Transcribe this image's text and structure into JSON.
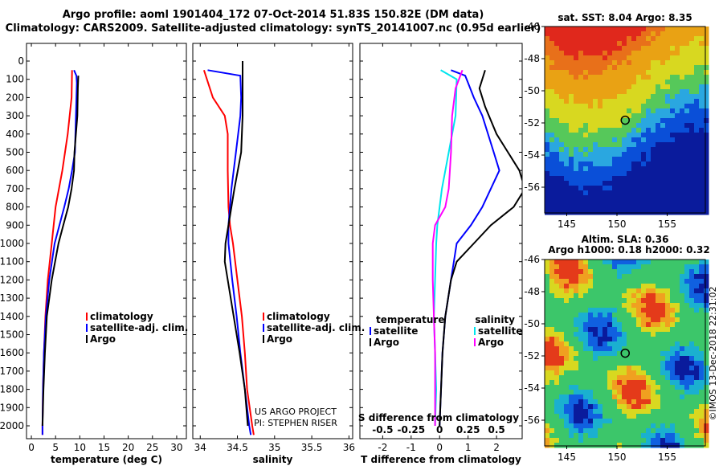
{
  "header": {
    "line1": "Argo profile: aoml 1901404_172 07-Oct-2014 51.83S 150.82E (DM data)",
    "line2": "Climatology: CARS2009. Satellite-adjusted climatology: synTS_20141007.nc (0.95d earlier)"
  },
  "depth_ticks": [
    "0",
    "100",
    "200",
    "300",
    "400",
    "500",
    "600",
    "700",
    "800",
    "900",
    "1000",
    "1100",
    "1200",
    "1300",
    "1400",
    "1500",
    "1600",
    "1700",
    "1800",
    "1900",
    "2000"
  ],
  "colors": {
    "climatology": "#ff0000",
    "satellite": "#0000ff",
    "argo": "#000000",
    "salinity_sat": "#00e5ee",
    "salinity_argo": "#ff00ff"
  },
  "chart_data": [
    {
      "type": "line",
      "xlabel": "temperature (deg C)",
      "xticks": [
        "0",
        "5",
        "10",
        "15",
        "20",
        "25",
        "30"
      ],
      "xlim": [
        -1,
        32
      ],
      "ylim": [
        2070,
        0
      ],
      "legend": [
        "climatology",
        "satellite-adj. clim.",
        "Argo"
      ],
      "series": [
        {
          "name": "climatology",
          "depth": [
            50,
            200,
            400,
            600,
            800,
            1000,
            1200,
            1400,
            1600,
            1800,
            2000,
            2050
          ],
          "values": [
            8.4,
            8.3,
            7.5,
            6.4,
            5.0,
            4.2,
            3.4,
            2.9,
            2.6,
            2.4,
            2.3,
            2.3
          ]
        },
        {
          "name": "satellite-adj. clim.",
          "depth": [
            50,
            80,
            120,
            300,
            500,
            600,
            700,
            800,
            900,
            1000,
            1200,
            1400,
            1600,
            1800,
            2000,
            2050
          ],
          "values": [
            8.8,
            9.3,
            9.4,
            9.2,
            9.0,
            8.4,
            7.7,
            6.8,
            5.8,
            4.8,
            3.7,
            3.0,
            2.6,
            2.4,
            2.3,
            2.3
          ]
        },
        {
          "name": "Argo",
          "depth": [
            80,
            150,
            300,
            500,
            600,
            700,
            800,
            900,
            1000,
            1200,
            1400,
            1600,
            1800,
            2000
          ],
          "values": [
            9.7,
            9.6,
            9.5,
            8.9,
            8.8,
            8.3,
            7.6,
            6.6,
            5.6,
            4.2,
            3.2,
            2.8,
            2.5,
            2.3
          ]
        }
      ]
    },
    {
      "type": "line",
      "xlabel": "salinity",
      "xticks": [
        "34",
        "34.5",
        "35",
        "35.5",
        "36"
      ],
      "xlim": [
        33.9,
        36.05
      ],
      "ylim": [
        2070,
        0
      ],
      "legend": [
        "climatology",
        "satellite-adj. clim.",
        "Argo"
      ],
      "annotations": [
        "US ARGO PROJECT",
        "PI: STEPHEN RISER"
      ],
      "series": [
        {
          "name": "climatology",
          "depth": [
            50,
            200,
            300,
            400,
            600,
            800,
            900,
            1000,
            1200,
            1400,
            1600,
            1800,
            2000,
            2050
          ],
          "values": [
            34.05,
            34.17,
            34.33,
            34.37,
            34.37,
            34.38,
            34.4,
            34.44,
            34.5,
            34.56,
            34.6,
            34.63,
            34.7,
            34.72
          ]
        },
        {
          "name": "satellite-adj. clim.",
          "depth": [
            50,
            80,
            200,
            300,
            500,
            700,
            900,
            1000,
            1200,
            1400,
            1600,
            1800,
            2000,
            2050
          ],
          "values": [
            34.1,
            34.54,
            34.55,
            34.54,
            34.48,
            34.42,
            34.38,
            34.38,
            34.43,
            34.49,
            34.54,
            34.6,
            34.66,
            34.68
          ]
        },
        {
          "name": "Argo",
          "depth": [
            0,
            150,
            300,
            500,
            700,
            900,
            1000,
            1100,
            1200,
            1400,
            1600,
            1800,
            2000
          ],
          "values": [
            34.57,
            34.57,
            34.57,
            34.55,
            34.46,
            34.38,
            34.34,
            34.33,
            34.37,
            34.45,
            34.53,
            34.6,
            34.64
          ]
        }
      ]
    },
    {
      "type": "line",
      "xlabel": "T difference from climatology",
      "xlabel2": "S difference from climatology",
      "xticks": [
        "-2",
        "-1",
        "0",
        "1",
        "2"
      ],
      "xticks2": [
        "-0.5",
        "-0.25",
        "0",
        "0.25",
        "0.5"
      ],
      "xlim": [
        -2.8,
        2.9
      ],
      "ylim": [
        2070,
        0
      ],
      "legend_left_title": "temperature",
      "legend_right_title": "salinity",
      "legend": [
        "satellite",
        "Argo"
      ],
      "series": [
        {
          "name": "temperature satellite",
          "depth": [
            50,
            80,
            120,
            200,
            300,
            500,
            600,
            800,
            900,
            1000,
            1200,
            1400,
            1600,
            1800,
            2000
          ],
          "values": [
            0.4,
            0.9,
            1.0,
            1.2,
            1.5,
            1.9,
            2.1,
            1.5,
            1.1,
            0.6,
            0.4,
            0.2,
            0.1,
            0.05,
            0.0
          ]
        },
        {
          "name": "temperature Argo",
          "depth": [
            50,
            150,
            250,
            400,
            500,
            600,
            700,
            800,
            900,
            1000,
            1100,
            1200,
            1400,
            1600,
            1800,
            2000
          ],
          "values": [
            1.6,
            1.4,
            1.6,
            2.0,
            2.4,
            2.8,
            3.0,
            2.6,
            1.8,
            1.2,
            0.6,
            0.4,
            0.2,
            0.1,
            0.05,
            0.0
          ]
        },
        {
          "name": "salinity satellite",
          "depth": [
            50,
            100,
            300,
            500,
            700,
            900,
            1000,
            1200,
            1400,
            1600,
            1800,
            2000
          ],
          "values": [
            0.01,
            0.15,
            0.14,
            0.08,
            0.02,
            -0.02,
            -0.03,
            -0.04,
            -0.05,
            -0.04,
            -0.03,
            -0.04
          ]
        },
        {
          "name": "salinity Argo",
          "depth": [
            50,
            150,
            300,
            500,
            700,
            800,
            900,
            1000,
            1200,
            1400,
            1600,
            1800,
            2000
          ],
          "values": [
            0.2,
            0.14,
            0.11,
            0.1,
            0.08,
            0.05,
            -0.04,
            -0.06,
            -0.06,
            -0.05,
            -0.04,
            -0.04,
            -0.04
          ]
        }
      ]
    },
    {
      "type": "heatmap",
      "title": "sat. SST: 8.04 Argo: 8.35",
      "xticks": [
        "145",
        "150",
        "155"
      ],
      "yticks": [
        "-46",
        "-48",
        "-50",
        "-52",
        "-54",
        "-56"
      ],
      "xlim": [
        142.8,
        158.8
      ],
      "ylim": [
        -57.6,
        -46
      ],
      "marker": {
        "lon": 150.82,
        "lat": -51.83
      }
    },
    {
      "type": "heatmap",
      "title": "Altim. SLA: 0.36",
      "subtitle": "Argo h1000: 0.18 h2000: 0.32",
      "xticks": [
        "145",
        "150",
        "155"
      ],
      "yticks": [
        "-46",
        "-48",
        "-50",
        "-52",
        "-54",
        "-56"
      ],
      "xlim": [
        142.8,
        158.8
      ],
      "ylim": [
        -57.6,
        -46
      ],
      "marker": {
        "lon": 150.82,
        "lat": -51.83
      }
    }
  ],
  "footer": "©IMOS 13-Dec-2018 22:31:02"
}
